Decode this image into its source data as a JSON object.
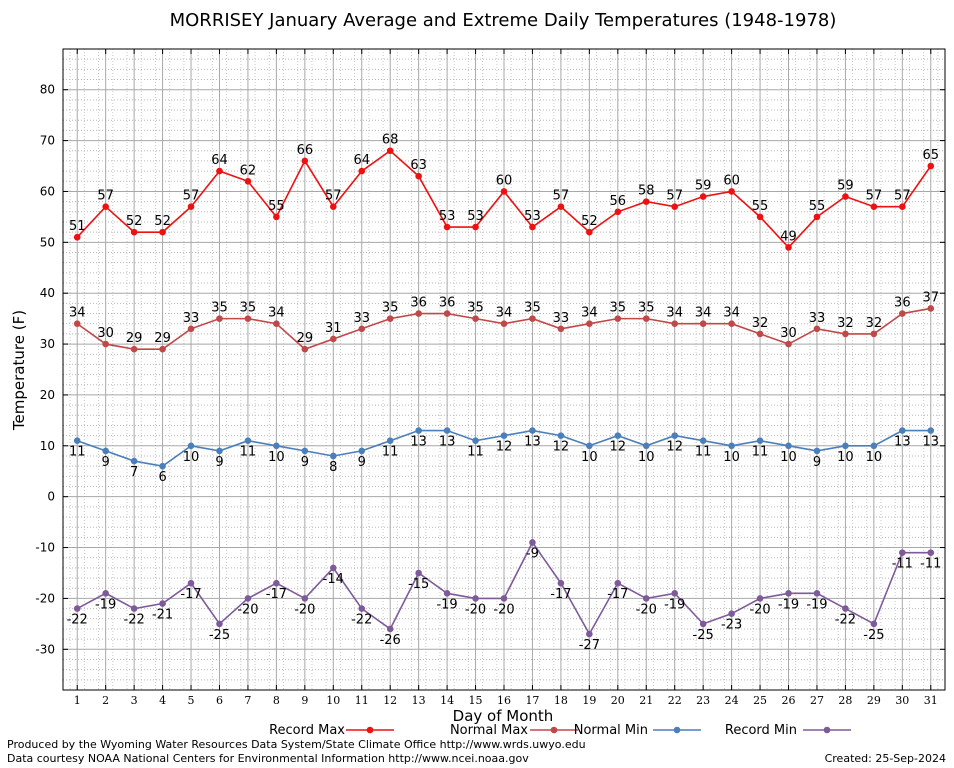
{
  "chart_data": {
    "type": "line",
    "title": "MORRISEY January Average and Extreme Daily Temperatures (1948-1978)",
    "xlabel": "Day of Month",
    "ylabel": "Temperature (F)",
    "xlim": [
      0.5,
      31.5
    ],
    "ylim": [
      -38,
      88
    ],
    "yticks": [
      -30,
      -20,
      -10,
      0,
      10,
      20,
      30,
      40,
      50,
      60,
      70,
      80
    ],
    "x": [
      1,
      2,
      3,
      4,
      5,
      6,
      7,
      8,
      9,
      10,
      11,
      12,
      13,
      14,
      15,
      16,
      17,
      18,
      19,
      20,
      21,
      22,
      23,
      24,
      25,
      26,
      27,
      28,
      29,
      30,
      31
    ],
    "grid": true,
    "legend_position": "bottom",
    "series": [
      {
        "name": "Record Max",
        "color": "#ee1111",
        "label_pos": "above",
        "values": [
          51,
          57,
          52,
          52,
          57,
          64,
          62,
          55,
          66,
          57,
          64,
          68,
          63,
          53,
          53,
          60,
          53,
          57,
          52,
          56,
          58,
          57,
          59,
          60,
          55,
          49,
          55,
          59,
          57,
          57,
          65
        ]
      },
      {
        "name": "Normal Max",
        "color": "#c04848",
        "label_pos": "above",
        "values": [
          34,
          30,
          29,
          29,
          33,
          35,
          35,
          34,
          29,
          31,
          33,
          35,
          36,
          36,
          35,
          34,
          35,
          33,
          34,
          35,
          35,
          34,
          34,
          34,
          32,
          30,
          33,
          32,
          32,
          36,
          37
        ]
      },
      {
        "name": "Normal Min",
        "color": "#4a7fbb",
        "label_pos": "below",
        "values": [
          11,
          9,
          7,
          6,
          10,
          9,
          11,
          10,
          9,
          8,
          9,
          11,
          13,
          13,
          11,
          12,
          13,
          12,
          10,
          12,
          10,
          12,
          11,
          10,
          11,
          10,
          9,
          10,
          10,
          13,
          13
        ]
      },
      {
        "name": "Record Min",
        "color": "#7e5a9b",
        "label_pos": "below",
        "values": [
          -22,
          -19,
          -22,
          -21,
          -17,
          -25,
          -20,
          -17,
          -20,
          -14,
          -22,
          -26,
          -15,
          -19,
          -20,
          -20,
          -9,
          -17,
          -27,
          -17,
          -20,
          -19,
          -25,
          -23,
          -20,
          -19,
          -19,
          -22,
          -25,
          -11,
          -11
        ]
      }
    ]
  },
  "footer": {
    "produced_by": "Produced by the Wyoming Water Resources Data System/State Climate Office http://www.wrds.uwyo.edu",
    "courtesy": "Data courtesy NOAA National Centers for Environmental Information http://www.ncei.noaa.gov",
    "created": "Created:  25-Sep-2024"
  }
}
